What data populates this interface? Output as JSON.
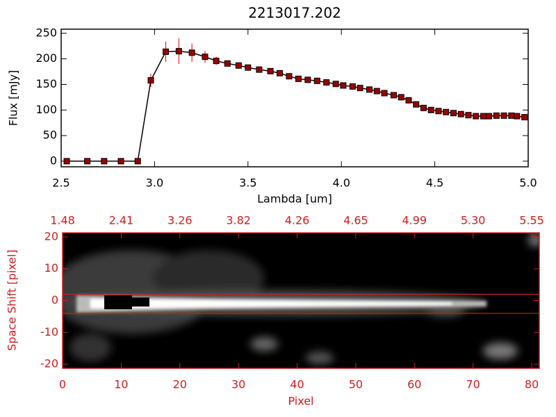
{
  "chart_data": [
    {
      "type": "line",
      "title": "2213017.202",
      "x_label": "Lambda [um]",
      "y_label": "Flux [mJy]",
      "color": "#000000",
      "marker_color": "#9a0000",
      "error_color": "#e00000",
      "x": [
        2.53,
        2.64,
        2.73,
        2.82,
        2.91,
        2.98,
        3.06,
        3.13,
        3.2,
        3.27,
        3.33,
        3.39,
        3.45,
        3.5,
        3.56,
        3.62,
        3.67,
        3.72,
        3.77,
        3.82,
        3.87,
        3.92,
        3.97,
        4.01,
        4.06,
        4.1,
        4.15,
        4.19,
        4.23,
        4.28,
        4.32,
        4.36,
        4.4,
        4.44,
        4.48,
        4.52,
        4.56,
        4.6,
        4.64,
        4.68,
        4.72,
        4.76,
        4.79,
        4.83,
        4.87,
        4.91,
        4.94,
        4.98
      ],
      "values": [
        0,
        0,
        0,
        0,
        0,
        158,
        214,
        215,
        212,
        204,
        196,
        191,
        187,
        183,
        179,
        176,
        172,
        166,
        161,
        159,
        157,
        154,
        151,
        148,
        146,
        143,
        140,
        137,
        133,
        129,
        125,
        119,
        111,
        104,
        100,
        98,
        96,
        94,
        92,
        90,
        88,
        88,
        88,
        89,
        89,
        89,
        88,
        86
      ],
      "errors": [
        2,
        2,
        2,
        2,
        2,
        13,
        20,
        25,
        18,
        12,
        8,
        5,
        3,
        3,
        3,
        3,
        3,
        3,
        3,
        3,
        3,
        3,
        3,
        3,
        3,
        3,
        3,
        3,
        3,
        3,
        3,
        3,
        3,
        3,
        3,
        3,
        3,
        3,
        3,
        3,
        3,
        3,
        3,
        3,
        3,
        3,
        3,
        3
      ],
      "xlim": [
        2.5,
        5.0
      ],
      "ylim": [
        -11,
        258
      ],
      "xticks": [
        2.5,
        {
          "value": 3,
          "label": "3.0"
        },
        3.5,
        {
          "value": 4,
          "label": "4.0"
        },
        4.5,
        {
          "value": 5,
          "label": "5.0"
        }
      ],
      "yticks": [
        0,
        50,
        100,
        150,
        200,
        250
      ]
    },
    {
      "type": "image",
      "x_label": "Pixel",
      "y_label": "Space Shift [pixel]",
      "color": "#cc2020",
      "xlim": [
        0,
        81.3
      ],
      "ylim": [
        -21.3,
        21.3
      ],
      "xticks": [
        0,
        10,
        20,
        30,
        40,
        50,
        60,
        70,
        80
      ],
      "x2ticks": [
        {
          "value": 0,
          "label": "1.48"
        },
        {
          "value": 10,
          "label": "2.41"
        },
        {
          "value": 20,
          "label": "3.26"
        },
        {
          "value": 30,
          "label": "3.82"
        },
        {
          "value": 40,
          "label": "4.26"
        },
        {
          "value": 50,
          "label": "4.65"
        },
        {
          "value": 60,
          "label": "4.99"
        },
        {
          "value": 70,
          "label": "5.30"
        },
        {
          "value": 80,
          "label": "5.55"
        }
      ],
      "yticks": [
        -20,
        -10,
        0,
        10,
        20
      ],
      "hlines": [
        2,
        -4
      ]
    }
  ]
}
